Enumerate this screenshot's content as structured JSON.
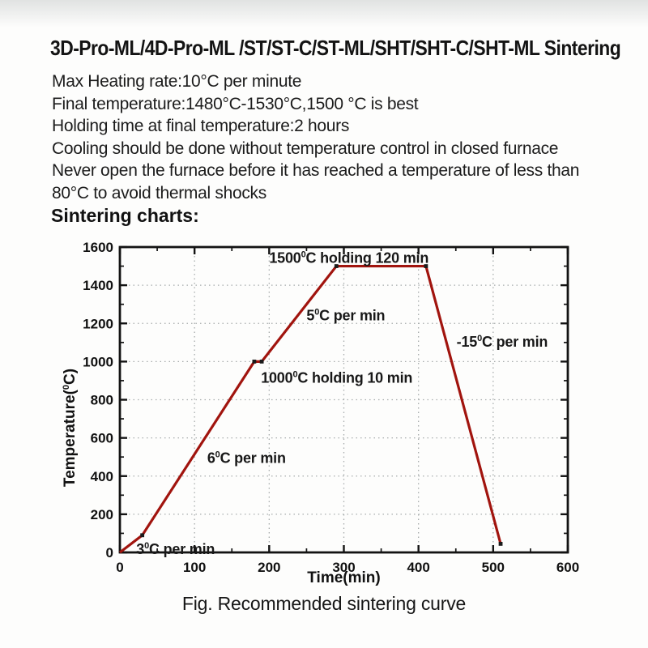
{
  "page": {
    "title": "3D-Pro-ML/4D-Pro-ML /ST/ST-C/ST-ML/SHT/SHT-C/SHT-ML Sintering",
    "instructions": [
      "Max Heating rate:10°C per minute",
      "Final temperature:1480°C-1530°C,1500 °C is best",
      "Holding time at final temperature:2 hours",
      "Cooling should be done without temperature control in closed furnace",
      "Never open the furnace before it has reached a temperature of less than",
      "80°C to avoid thermal shocks"
    ],
    "charts_heading": "Sintering charts:",
    "caption": "Fig. Recommended sintering curve"
  },
  "colors": {
    "curve": "#a1140e",
    "axis": "#131313",
    "grid": "#a6abab",
    "text": "#1a1a1a"
  },
  "chart_data": {
    "type": "line",
    "title": "",
    "xlabel": "Time(min)",
    "ylabel": "Temperature(⁰C)",
    "xlim": [
      0,
      600
    ],
    "ylim": [
      0,
      1600
    ],
    "xticks": [
      0,
      100,
      200,
      300,
      400,
      500,
      600
    ],
    "yticks": [
      0,
      200,
      400,
      600,
      800,
      1000,
      1200,
      1400,
      1600
    ],
    "x_minor_step": 50,
    "y_minor_step": 100,
    "grid": true,
    "legend": false,
    "series": [
      {
        "name": "recommended sintering curve",
        "color": "#a1140e",
        "points": [
          [
            0,
            0
          ],
          [
            30,
            90
          ],
          [
            180,
            1000
          ],
          [
            190,
            1000
          ],
          [
            290,
            1500
          ],
          [
            410,
            1500
          ],
          [
            510,
            45
          ]
        ]
      }
    ],
    "annotations": [
      {
        "text": "3⁰C per min",
        "x": 22,
        "y": -8
      },
      {
        "text": "6⁰C per min",
        "x": 117,
        "y": 470
      },
      {
        "text": "1000⁰C holding 10 min",
        "x": 189,
        "y": 890
      },
      {
        "text": "5⁰C per min",
        "x": 250,
        "y": 1215
      },
      {
        "text": "1500⁰C holding 120 min",
        "x": 200,
        "y": 1518
      },
      {
        "text": "-15⁰C per min",
        "x": 451,
        "y": 1078
      }
    ]
  }
}
